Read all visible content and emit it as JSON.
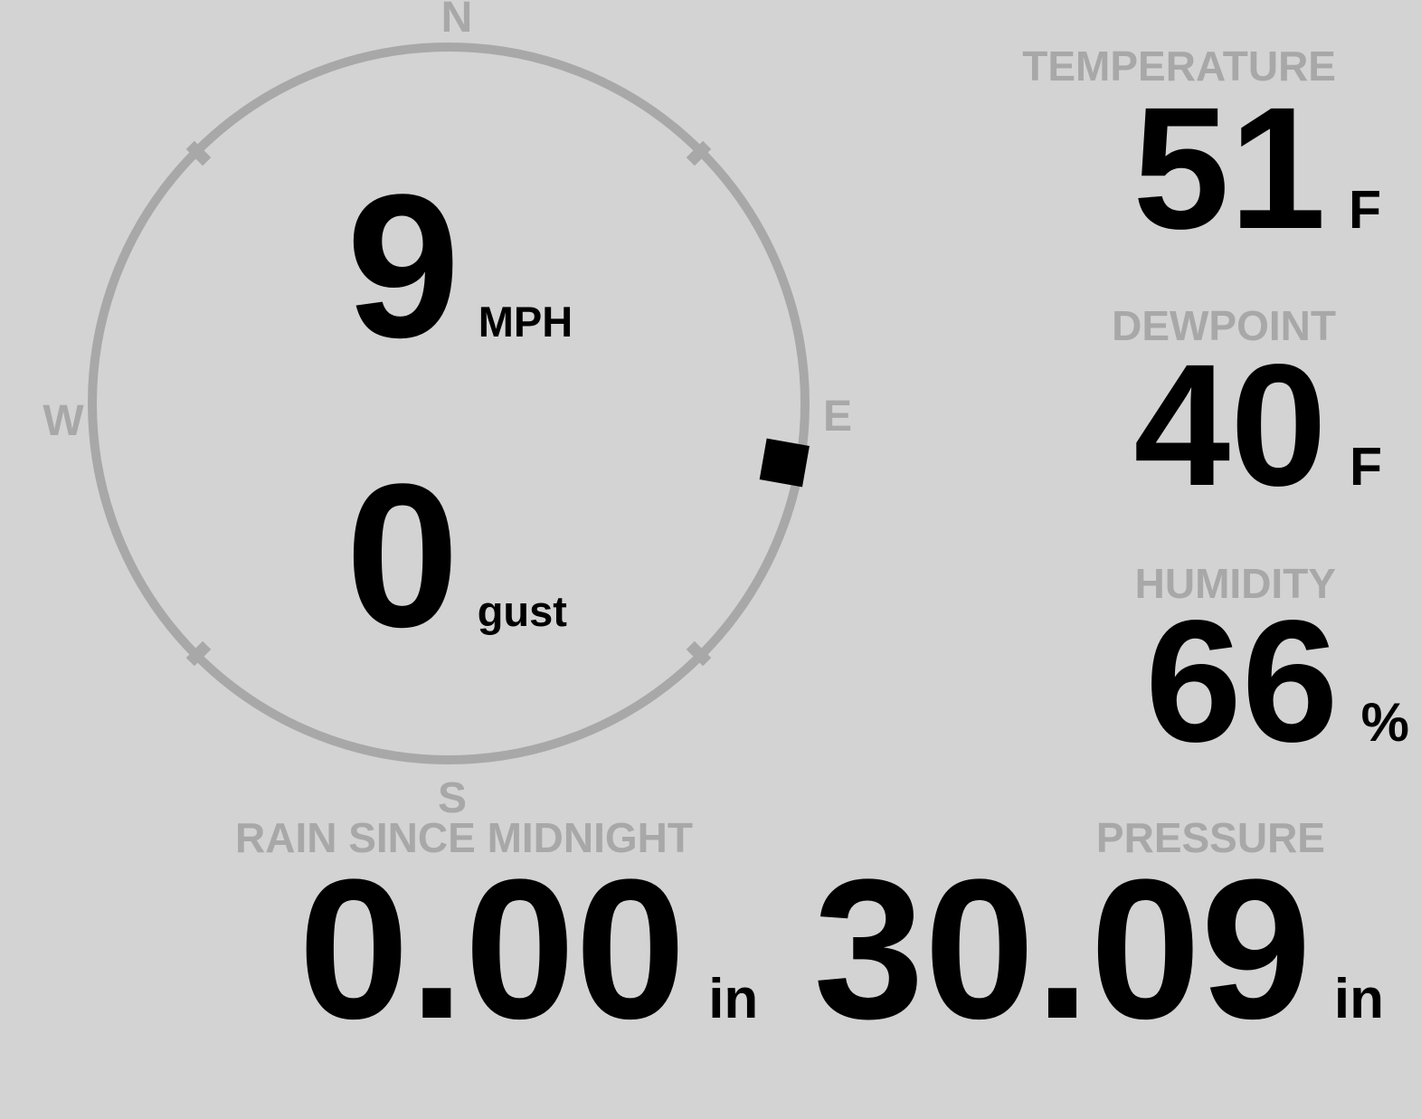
{
  "colors": {
    "background": "#d3d3d3",
    "muted_gray": "#a8a8a8",
    "foreground": "#000000"
  },
  "compass": {
    "cardinals": {
      "north": "N",
      "east": "E",
      "south": "S",
      "west": "W"
    },
    "wind_speed": {
      "value": "9",
      "unit": "MPH"
    },
    "wind_gust": {
      "value": "0",
      "unit": "gust"
    },
    "indicator_bearing_deg": 100
  },
  "readings": {
    "temperature": {
      "label": "TEMPERATURE",
      "value": "51",
      "unit": "F"
    },
    "dewpoint": {
      "label": "DEWPOINT",
      "value": "40",
      "unit": "F"
    },
    "humidity": {
      "label": "HUMIDITY",
      "value": "66",
      "unit": "%"
    },
    "rain": {
      "label": "RAIN SINCE MIDNIGHT",
      "value": "0.00",
      "unit": "in"
    },
    "pressure": {
      "label": "PRESSURE",
      "value": "30.09",
      "unit": "in"
    }
  }
}
